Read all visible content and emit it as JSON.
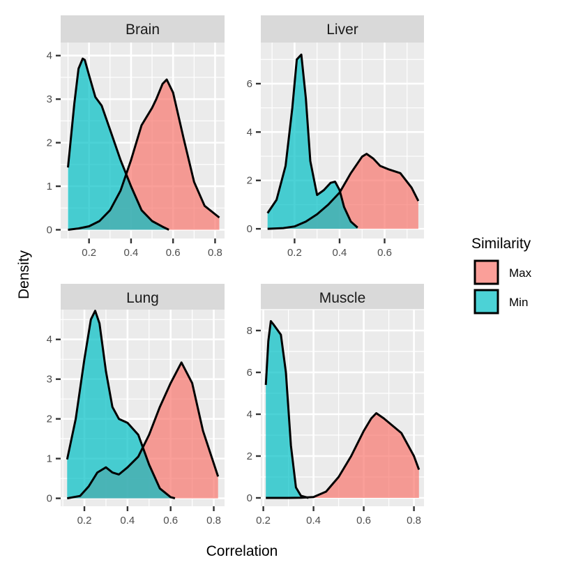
{
  "chart_data": {
    "type": "area",
    "xlabel": "Correlation",
    "ylabel": "Density",
    "legend": {
      "title": "Similarity",
      "position": "right",
      "entries": [
        {
          "label": "Max",
          "color": "#F8766D"
        },
        {
          "label": "Min",
          "color": "#00BFC4"
        }
      ]
    },
    "colors": {
      "Max": "#F8766D",
      "Min": "#00BFC4",
      "panel_bg": "#EBEBEB",
      "strip_bg": "#D9D9D9",
      "grid": "#FFFFFF"
    },
    "grid": true,
    "panels": [
      {
        "title": "Brain",
        "xlim": [
          0.065,
          0.845
        ],
        "ylim": [
          -0.2,
          4.3
        ],
        "xticks": [
          0.2,
          0.4,
          0.6,
          0.8
        ],
        "xtick_labels": [
          "0.2",
          "0.4",
          "0.6",
          "0.8"
        ],
        "yticks": [
          0,
          1,
          2,
          3,
          4
        ],
        "ytick_labels": [
          "0",
          "1",
          "2",
          "3",
          "4"
        ],
        "series": [
          {
            "name": "Max",
            "x": [
              0.1,
              0.15,
              0.2,
              0.25,
              0.3,
              0.35,
              0.4,
              0.45,
              0.5,
              0.52,
              0.55,
              0.57,
              0.6,
              0.65,
              0.7,
              0.75,
              0.82
            ],
            "y": [
              0.0,
              0.03,
              0.08,
              0.2,
              0.45,
              0.9,
              1.6,
              2.4,
              2.8,
              3.0,
              3.35,
              3.45,
              3.15,
              2.1,
              1.1,
              0.55,
              0.28
            ]
          },
          {
            "name": "Min",
            "x": [
              0.1,
              0.13,
              0.15,
              0.17,
              0.18,
              0.2,
              0.23,
              0.26,
              0.3,
              0.35,
              0.4,
              0.45,
              0.5,
              0.55,
              0.58
            ],
            "y": [
              1.43,
              2.9,
              3.7,
              3.93,
              3.9,
              3.55,
              3.05,
              2.85,
              2.3,
              1.6,
              1.0,
              0.45,
              0.2,
              0.07,
              0.0
            ]
          }
        ]
      },
      {
        "title": "Liver",
        "xlim": [
          0.05,
          0.775
        ],
        "ylim": [
          -0.4,
          7.7
        ],
        "xticks": [
          0.2,
          0.4,
          0.6
        ],
        "xtick_labels": [
          "0.2",
          "0.4",
          "0.6"
        ],
        "yticks": [
          0,
          2,
          4,
          6
        ],
        "ytick_labels": [
          "0",
          "2",
          "4",
          "6"
        ],
        "series": [
          {
            "name": "Max",
            "x": [
              0.08,
              0.15,
              0.2,
              0.25,
              0.3,
              0.35,
              0.4,
              0.45,
              0.5,
              0.52,
              0.55,
              0.58,
              0.62,
              0.67,
              0.72,
              0.75
            ],
            "y": [
              0.0,
              0.03,
              0.1,
              0.3,
              0.6,
              1.0,
              1.5,
              2.3,
              2.98,
              3.1,
              2.9,
              2.6,
              2.45,
              2.3,
              1.7,
              1.15
            ]
          },
          {
            "name": "Min",
            "x": [
              0.08,
              0.12,
              0.16,
              0.19,
              0.21,
              0.23,
              0.25,
              0.27,
              0.3,
              0.33,
              0.36,
              0.38,
              0.4,
              0.42,
              0.45,
              0.48
            ],
            "y": [
              0.65,
              1.2,
              2.6,
              5.0,
              7.0,
              7.2,
              5.4,
              2.8,
              1.4,
              1.6,
              1.9,
              1.95,
              1.6,
              0.9,
              0.3,
              0.05
            ]
          }
        ]
      },
      {
        "title": "Lung",
        "xlim": [
          0.09,
          0.85
        ],
        "ylim": [
          -0.2,
          4.75
        ],
        "xticks": [
          0.2,
          0.4,
          0.6,
          0.8
        ],
        "xtick_labels": [
          "0.2",
          "0.4",
          "0.6",
          "0.8"
        ],
        "yticks": [
          0,
          1,
          2,
          3,
          4
        ],
        "ytick_labels": [
          "0",
          "1",
          "2",
          "3",
          "4"
        ],
        "series": [
          {
            "name": "Max",
            "x": [
              0.12,
              0.18,
              0.22,
              0.26,
              0.3,
              0.33,
              0.36,
              0.4,
              0.45,
              0.5,
              0.55,
              0.6,
              0.65,
              0.7,
              0.75,
              0.82
            ],
            "y": [
              0.0,
              0.06,
              0.3,
              0.65,
              0.78,
              0.65,
              0.6,
              0.78,
              1.05,
              1.6,
              2.3,
              2.9,
              3.42,
              2.9,
              1.7,
              0.55
            ]
          },
          {
            "name": "Min",
            "x": [
              0.12,
              0.16,
              0.2,
              0.23,
              0.25,
              0.27,
              0.3,
              0.33,
              0.36,
              0.4,
              0.45,
              0.5,
              0.55,
              0.6,
              0.62
            ],
            "y": [
              0.98,
              2.0,
              3.5,
              4.5,
              4.72,
              4.4,
              3.2,
              2.3,
              2.0,
              1.9,
              1.6,
              0.85,
              0.25,
              0.03,
              0.0
            ]
          }
        ]
      },
      {
        "title": "Muscle",
        "xlim": [
          0.19,
          0.84
        ],
        "ylim": [
          -0.4,
          9.0
        ],
        "xticks": [
          0.2,
          0.4,
          0.6,
          0.8
        ],
        "xtick_labels": [
          "0.2",
          "0.4",
          "0.6",
          "0.8"
        ],
        "yticks": [
          0,
          2,
          4,
          6,
          8
        ],
        "ytick_labels": [
          "0",
          "2",
          "4",
          "6",
          "8"
        ],
        "series": [
          {
            "name": "Max",
            "x": [
              0.21,
              0.3,
              0.35,
              0.4,
              0.45,
              0.5,
              0.55,
              0.6,
              0.63,
              0.65,
              0.68,
              0.71,
              0.75,
              0.8,
              0.82
            ],
            "y": [
              0.0,
              0.0,
              0.01,
              0.04,
              0.3,
              1.0,
              2.0,
              3.2,
              3.8,
              4.05,
              3.8,
              3.5,
              3.1,
              2.0,
              1.35
            ]
          },
          {
            "name": "Min",
            "x": [
              0.21,
              0.22,
              0.23,
              0.24,
              0.255,
              0.27,
              0.29,
              0.31,
              0.33,
              0.35,
              0.38
            ],
            "y": [
              5.4,
              7.5,
              8.45,
              8.3,
              8.05,
              7.8,
              6.0,
              2.5,
              0.5,
              0.1,
              0.0
            ]
          }
        ]
      }
    ]
  }
}
